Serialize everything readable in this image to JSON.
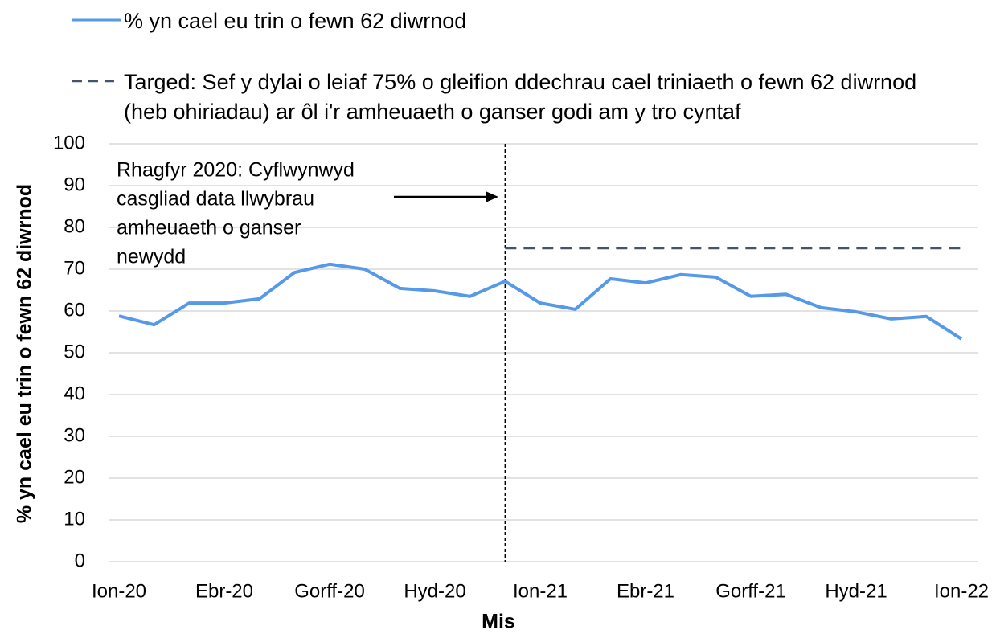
{
  "chart_data": {
    "type": "line",
    "ylabel": "% yn cael eu trin o fewn 62 diwrnod",
    "xlabel": "Mis",
    "categories": [
      "Ion-20",
      null,
      null,
      "Ebr-20",
      null,
      null,
      "Gorff-20",
      null,
      null,
      "Hyd-20",
      null,
      null,
      "Ion-21",
      null,
      null,
      "Ebr-21",
      null,
      null,
      "Gorff-21",
      null,
      null,
      "Hyd-21",
      null,
      null,
      "Ion-22"
    ],
    "series": [
      {
        "name": "% yn cael eu trin o fewn 62 diwrnod",
        "color": "#5599e8",
        "dash": false,
        "values": [
          58.8,
          56.7,
          61.9,
          61.9,
          62.9,
          69.2,
          71.2,
          70.0,
          65.4,
          64.8,
          63.5,
          67.1,
          61.9,
          60.4,
          67.7,
          66.7,
          68.7,
          68.1,
          63.5,
          64.0,
          60.8,
          59.8,
          58.1,
          58.7,
          53.3
        ]
      },
      {
        "name": "Targed: Sef y dylai o leiaf 75% o gleifion ddechrau cael triniaeth o fewn 62 diwrnod (heb ohiriadau) ar ôl i'r amheuaeth o ganser godi am y tro cyntaf",
        "color": "#44546a",
        "dash": true,
        "values": [
          null,
          null,
          null,
          null,
          null,
          null,
          null,
          null,
          null,
          null,
          null,
          75,
          75,
          75,
          75,
          75,
          75,
          75,
          75,
          75,
          75,
          75,
          75,
          75,
          75
        ]
      }
    ],
    "annotation": [
      "Rhagfyr 2020: Cyflwynwyd",
      "casgliad data llwybrau",
      "amheuaeth o ganser",
      "newydd"
    ],
    "ylim": [
      0,
      100
    ],
    "yticks": [
      0,
      10,
      20,
      30,
      40,
      50,
      60,
      70,
      80,
      90,
      100
    ],
    "grid": true
  }
}
